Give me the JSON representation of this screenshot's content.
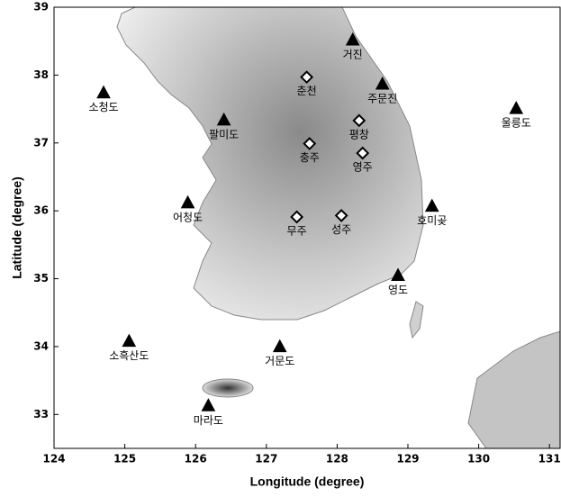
{
  "chart_data": {
    "type": "scatter",
    "x_label": "Longitude (degree)",
    "y_label": "Latitude (degree)",
    "xlim": [
      124,
      131.15
    ],
    "ylim": [
      32.5,
      39
    ],
    "xticks": [
      124,
      125,
      126,
      127,
      128,
      129,
      130,
      131
    ],
    "yticks": [
      33,
      34,
      35,
      36,
      37,
      38,
      39
    ],
    "series": [
      {
        "marker": "triangle",
        "color": "#000000",
        "labels": [
          "거진",
          "주문진",
          "소청도",
          "팔미도",
          "울릉도",
          "어청도",
          "호미곶",
          "영도",
          "소흑산도",
          "거문도",
          "마라도"
        ],
        "x": [
          128.22,
          128.64,
          124.7,
          126.4,
          130.53,
          125.89,
          129.34,
          128.86,
          125.06,
          127.19,
          126.18
        ],
        "y": [
          38.51,
          37.86,
          37.73,
          37.33,
          37.5,
          36.11,
          36.06,
          35.04,
          34.07,
          33.99,
          33.12
        ]
      },
      {
        "marker": "diamond",
        "color": "#000000",
        "labels": [
          "춘천",
          "평창",
          "충주",
          "영주",
          "무주",
          "성주"
        ],
        "x": [
          127.57,
          128.31,
          127.61,
          128.36,
          127.43,
          128.06
        ],
        "y": [
          37.97,
          37.33,
          36.99,
          36.85,
          35.91,
          35.93
        ]
      }
    ]
  }
}
